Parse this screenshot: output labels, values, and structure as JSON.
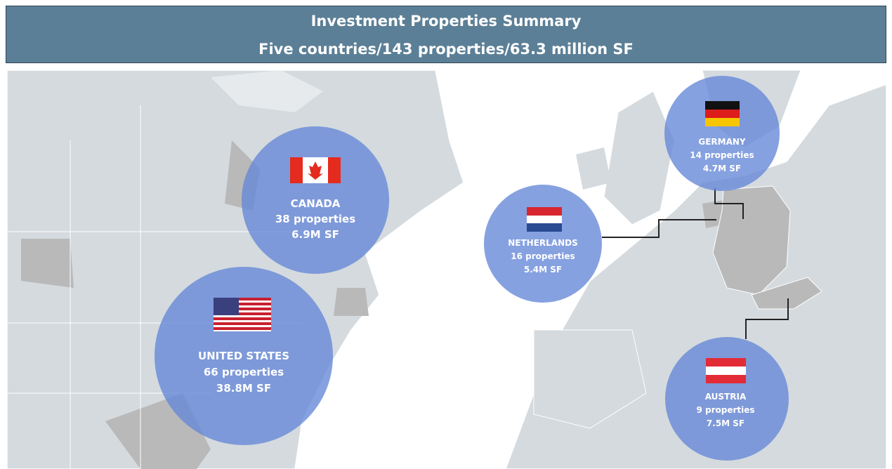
{
  "header": {
    "title": "Investment Properties Summary",
    "subtitle": "Five countries/143 properties/63.3 million SF"
  },
  "countries": [
    {
      "name": "CANADA",
      "properties": "38 properties",
      "area": "6.9M SF"
    },
    {
      "name": "UNITED STATES",
      "properties": "66 properties",
      "area": "38.8M SF"
    },
    {
      "name": "NETHERLANDS",
      "properties": "16 properties",
      "area": "5.4M SF"
    },
    {
      "name": "GERMANY",
      "properties": "14 properties",
      "area": "4.7M SF"
    },
    {
      "name": "AUSTRIA",
      "properties": "9 properties",
      "area": "7.5M SF"
    }
  ]
}
